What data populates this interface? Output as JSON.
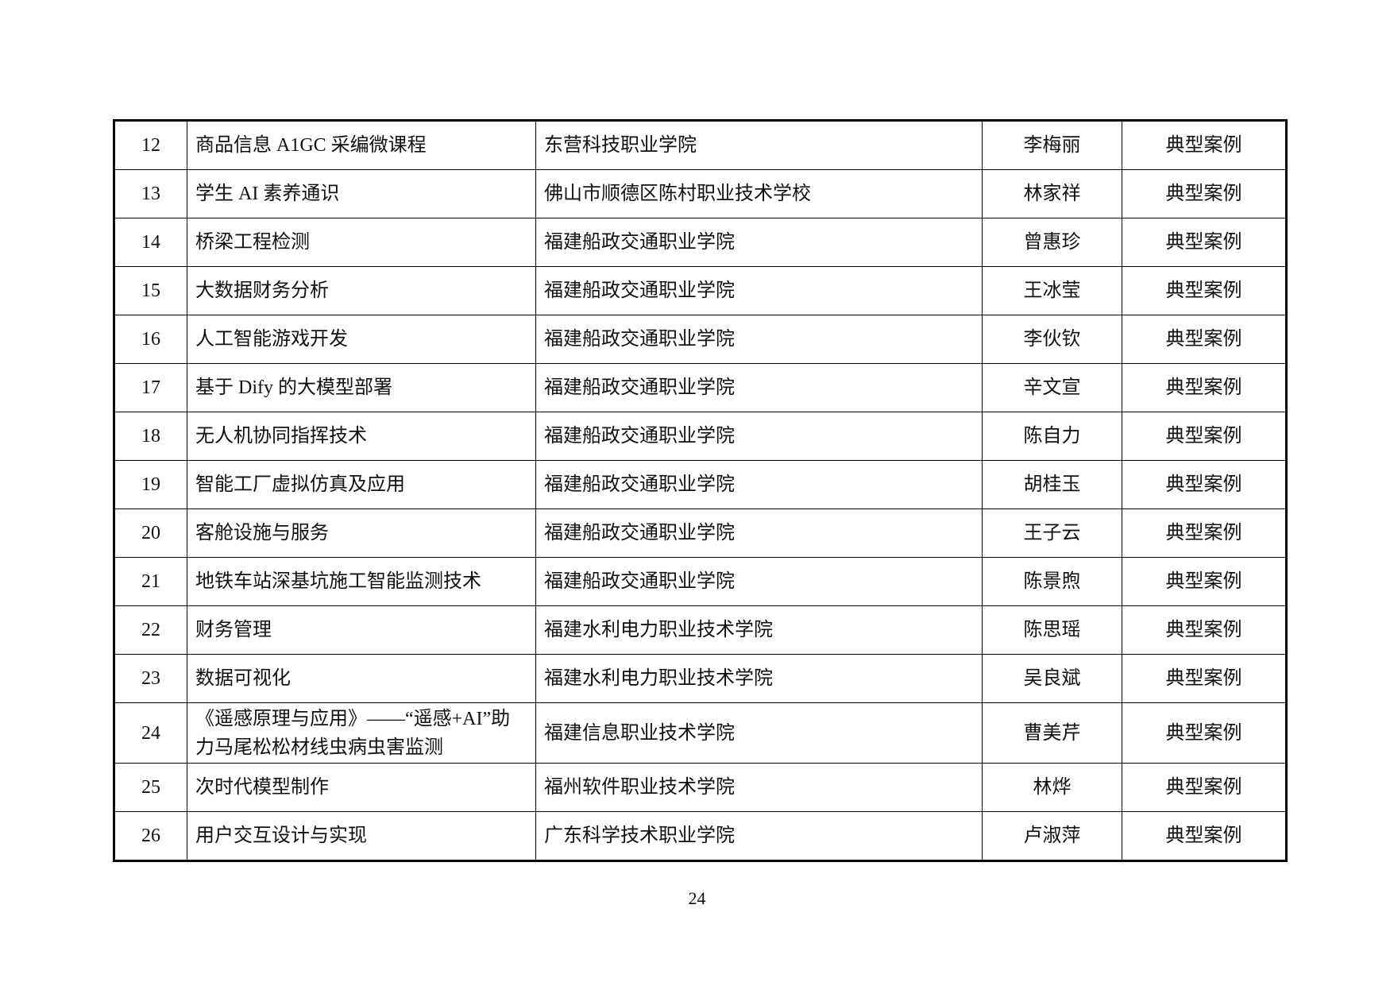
{
  "rows": [
    {
      "no": "12",
      "course": "商品信息 A1GC 采编微课程",
      "school": "东营科技职业学院",
      "person": "李梅丽",
      "type": "典型案例"
    },
    {
      "no": "13",
      "course": "学生 AI 素养通识",
      "school": "佛山市顺德区陈村职业技术学校",
      "person": "林家祥",
      "type": "典型案例"
    },
    {
      "no": "14",
      "course": "桥梁工程检测",
      "school": "福建船政交通职业学院",
      "person": "曾惠珍",
      "type": "典型案例"
    },
    {
      "no": "15",
      "course": "大数据财务分析",
      "school": "福建船政交通职业学院",
      "person": "王冰莹",
      "type": "典型案例"
    },
    {
      "no": "16",
      "course": "人工智能游戏开发",
      "school": "福建船政交通职业学院",
      "person": "李伙钦",
      "type": "典型案例"
    },
    {
      "no": "17",
      "course": "基于 Dify 的大模型部署",
      "school": "福建船政交通职业学院",
      "person": "辛文宣",
      "type": "典型案例"
    },
    {
      "no": "18",
      "course": "无人机协同指挥技术",
      "school": "福建船政交通职业学院",
      "person": "陈自力",
      "type": "典型案例"
    },
    {
      "no": "19",
      "course": "智能工厂虚拟仿真及应用",
      "school": "福建船政交通职业学院",
      "person": "胡桂玉",
      "type": "典型案例"
    },
    {
      "no": "20",
      "course": "客舱设施与服务",
      "school": "福建船政交通职业学院",
      "person": "王子云",
      "type": "典型案例"
    },
    {
      "no": "21",
      "course": "地铁车站深基坑施工智能监测技术",
      "school": "福建船政交通职业学院",
      "person": "陈景煦",
      "type": "典型案例"
    },
    {
      "no": "22",
      "course": "财务管理",
      "school": "福建水利电力职业技术学院",
      "person": "陈思瑶",
      "type": "典型案例"
    },
    {
      "no": "23",
      "course": "数据可视化",
      "school": "福建水利电力职业技术学院",
      "person": "吴良斌",
      "type": "典型案例"
    },
    {
      "no": "24",
      "course": "《遥感原理与应用》——“遥感+AI”助力马尾松松材线虫病虫害监测",
      "school": "福建信息职业技术学院",
      "person": "曹美芹",
      "type": "典型案例"
    },
    {
      "no": "25",
      "course": "次时代模型制作",
      "school": "福州软件职业技术学院",
      "person": "林烨",
      "type": "典型案例"
    },
    {
      "no": "26",
      "course": "用户交互设计与实现",
      "school": "广东科学技术职业学院",
      "person": "卢淑萍",
      "type": "典型案例"
    }
  ],
  "page_number": "24"
}
